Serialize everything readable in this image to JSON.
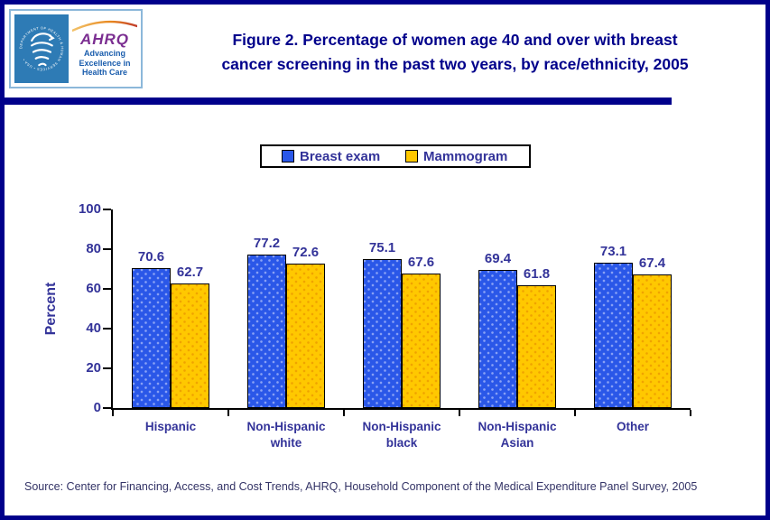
{
  "colors": {
    "page_border": "#00008B",
    "title_navy": "#00008B",
    "chart_label_navy": "#333399",
    "source_text": "#333366",
    "hhs_panel_blue": "#2E7BB5",
    "ahrq_purple": "#7B2E91",
    "tagline_blue": "#1A5DAD",
    "bar_border": "#000000"
  },
  "header": {
    "logo": {
      "seal_text": "DEPARTMENT OF HEALTH & HUMAN SERVICES • USA •",
      "ahrq_acronym": "AHRQ",
      "tagline": "Advancing\nExcellence in\nHealth Care"
    },
    "title_line1": "Figure 2. Percentage  of women age 40 and over with breast",
    "title_line2": "cancer screening in the past two years, by race/ethnicity, 2005"
  },
  "chart_data": {
    "type": "bar",
    "title": "Figure 2. Percentage of women age 40 and over with breast cancer screening in the past two years, by race/ethnicity, 2005",
    "categories": [
      "Hispanic",
      "Non-Hispanic white",
      "Non-Hispanic black",
      "Non-Hispanic Asian",
      "Other"
    ],
    "series": [
      {
        "name": "Breast exam",
        "color": "#2A57E8",
        "values": [
          70.6,
          77.2,
          75.1,
          69.4,
          73.1
        ]
      },
      {
        "name": "Mammogram",
        "color": "#FFC800",
        "values": [
          62.7,
          72.6,
          67.6,
          61.8,
          67.4
        ]
      }
    ],
    "xlabel": "",
    "ylabel": "Percent",
    "ylim": [
      0,
      100
    ],
    "yticks": [
      0,
      20,
      40,
      60,
      80,
      100
    ],
    "grid": false,
    "legend_position": "top-center",
    "data_labels": true
  },
  "footer": {
    "source": "Source: Center for Financing, Access, and Cost Trends, AHRQ,  Household Component of the Medical Expenditure Panel Survey, 2005"
  }
}
